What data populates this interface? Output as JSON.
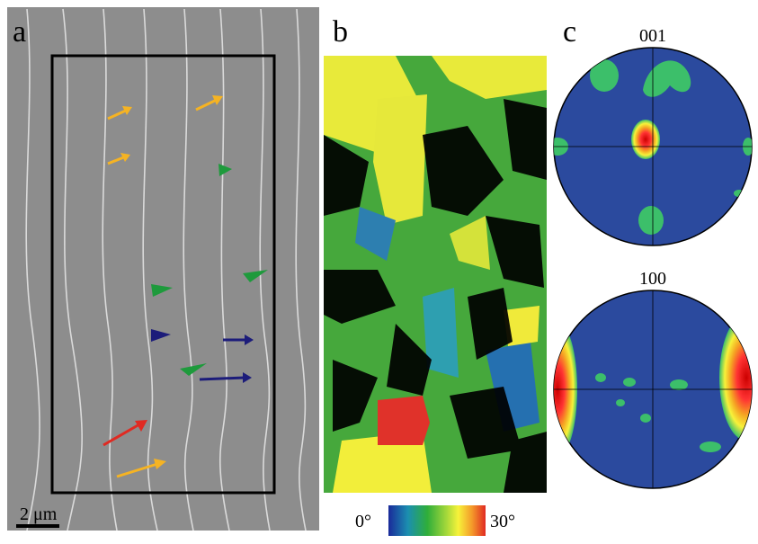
{
  "panels": {
    "a": {
      "label": "a",
      "scale_bar": "2 μm"
    },
    "b": {
      "label": "b",
      "colorbar": {
        "min_label": "0°",
        "max_label": "30°"
      }
    },
    "c": {
      "label": "c",
      "pole_figures": [
        {
          "label": "001"
        },
        {
          "label": "100"
        }
      ]
    }
  }
}
